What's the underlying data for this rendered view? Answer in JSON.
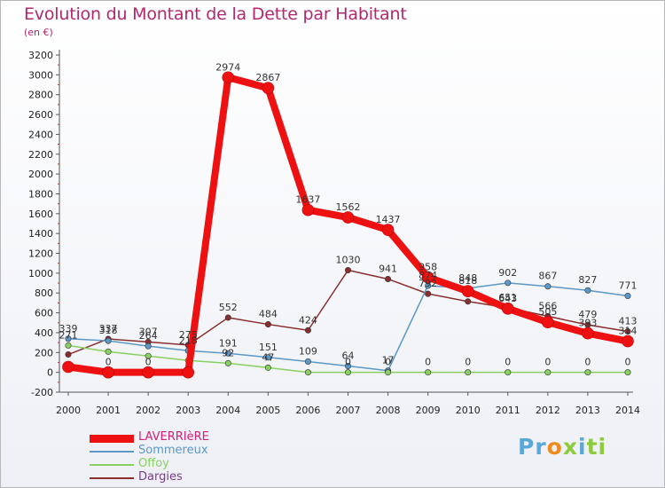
{
  "title": "Evolution du Montant de la Dette par Habitant",
  "subtitle": "(en €)",
  "logo": {
    "p1": "Pr",
    "p2": "o",
    "p3": "x",
    "p4": "i",
    "p5": "ti"
  },
  "chart_data": {
    "type": "line",
    "x": [
      "2000",
      "2001",
      "2002",
      "2003",
      "2004",
      "2005",
      "2006",
      "2007",
      "2008",
      "2009",
      "2010",
      "2011",
      "2012",
      "2013",
      "2014"
    ],
    "ylim": [
      -200,
      3200
    ],
    "yticks": [
      "-200",
      "0",
      "200",
      "400",
      "600",
      "800",
      "1000",
      "1200",
      "1400",
      "1600",
      "1800",
      "2000",
      "2200",
      "2400",
      "2600",
      "2800",
      "3000",
      "3200"
    ],
    "grid": false,
    "legend_position": "bottom-left",
    "series": [
      {
        "name": "LAVERRIèRE",
        "color": "#ee1111",
        "width": 8,
        "values": [
          55,
          0,
          0,
          0,
          2974,
          2867,
          1637,
          1562,
          1437,
          958,
          818,
          643,
          505,
          393,
          314
        ],
        "labels": [
          "",
          "0",
          "0",
          "",
          "2974",
          "2867",
          "1637",
          "1562",
          "1437",
          "958",
          "818",
          "643",
          "505",
          "393",
          "314"
        ]
      },
      {
        "name": "Sommereux",
        "color": "#5b98c7",
        "width": 1.5,
        "values": [
          339,
          318,
          264,
          218,
          191,
          151,
          109,
          64,
          17,
          874,
          848,
          902,
          867,
          827,
          771
        ],
        "labels": [
          "339",
          "318",
          "264",
          "218",
          "191",
          "151",
          "109",
          "64",
          "17",
          "874",
          "848",
          "902",
          "867",
          "827",
          "771"
        ]
      },
      {
        "name": "Offoy",
        "color": "#88d060",
        "width": 1.5,
        "values": [
          271,
          208,
          165,
          120,
          92,
          47,
          0,
          0,
          0,
          0,
          0,
          0,
          0,
          0,
          0
        ],
        "labels": [
          "271",
          "",
          "",
          "",
          "92",
          "47",
          "",
          "0",
          "0",
          "0",
          "0",
          "0",
          "0",
          "0",
          "0"
        ]
      },
      {
        "name": "Dargies",
        "color": "#8a2e2e",
        "width": 1.5,
        "values": [
          180,
          337,
          307,
          275,
          552,
          484,
          424,
          1030,
          941,
          792,
          715,
          651,
          566,
          479,
          413
        ],
        "labels": [
          "",
          "337",
          "307",
          "275",
          "552",
          "484",
          "424",
          "1030",
          "941",
          "792",
          "",
          "651",
          "566",
          "479",
          "413"
        ]
      }
    ]
  }
}
